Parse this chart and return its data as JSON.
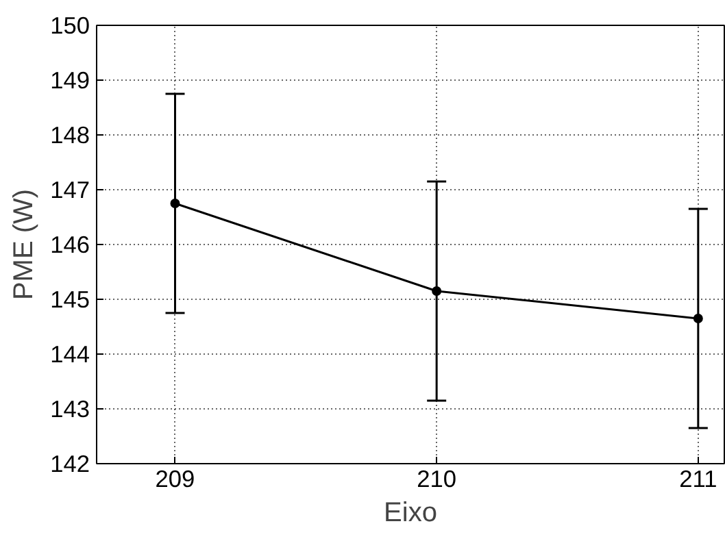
{
  "chart_data": {
    "type": "line",
    "xlabel": "Eixo",
    "ylabel": "PME (W)",
    "x": [
      209,
      210,
      211
    ],
    "series": [
      {
        "color": "#000000",
        "values": [
          146.75,
          145.15,
          144.65
        ],
        "errors": [
          2.0,
          2.0,
          2.0
        ]
      }
    ],
    "xlim": [
      208.7,
      211.1
    ],
    "xticks": [
      209,
      210,
      211
    ],
    "ylim": [
      142,
      150
    ],
    "yticks": [
      142,
      143,
      144,
      145,
      146,
      147,
      148,
      149,
      150
    ],
    "grid": true,
    "marker": "circle",
    "line_style": "solid"
  }
}
